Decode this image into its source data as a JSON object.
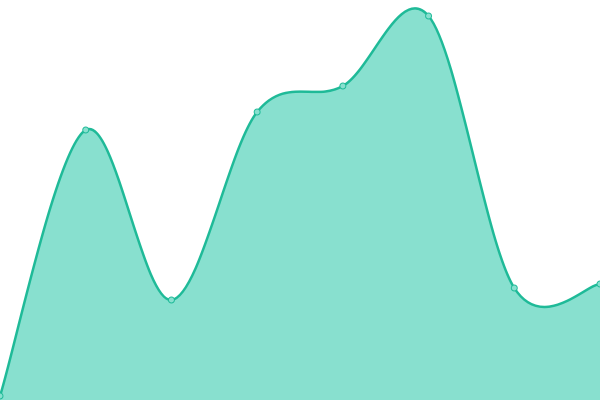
{
  "chart_data": {
    "type": "area",
    "categories": [
      null,
      null,
      null,
      null,
      null,
      null,
      null,
      null
    ],
    "values": [
      1,
      67.5,
      25,
      72,
      78.5,
      96,
      28,
      29
    ],
    "color": "#1fba98",
    "fill_color": "#88e0cf",
    "ylim": [
      0,
      100
    ]
  }
}
